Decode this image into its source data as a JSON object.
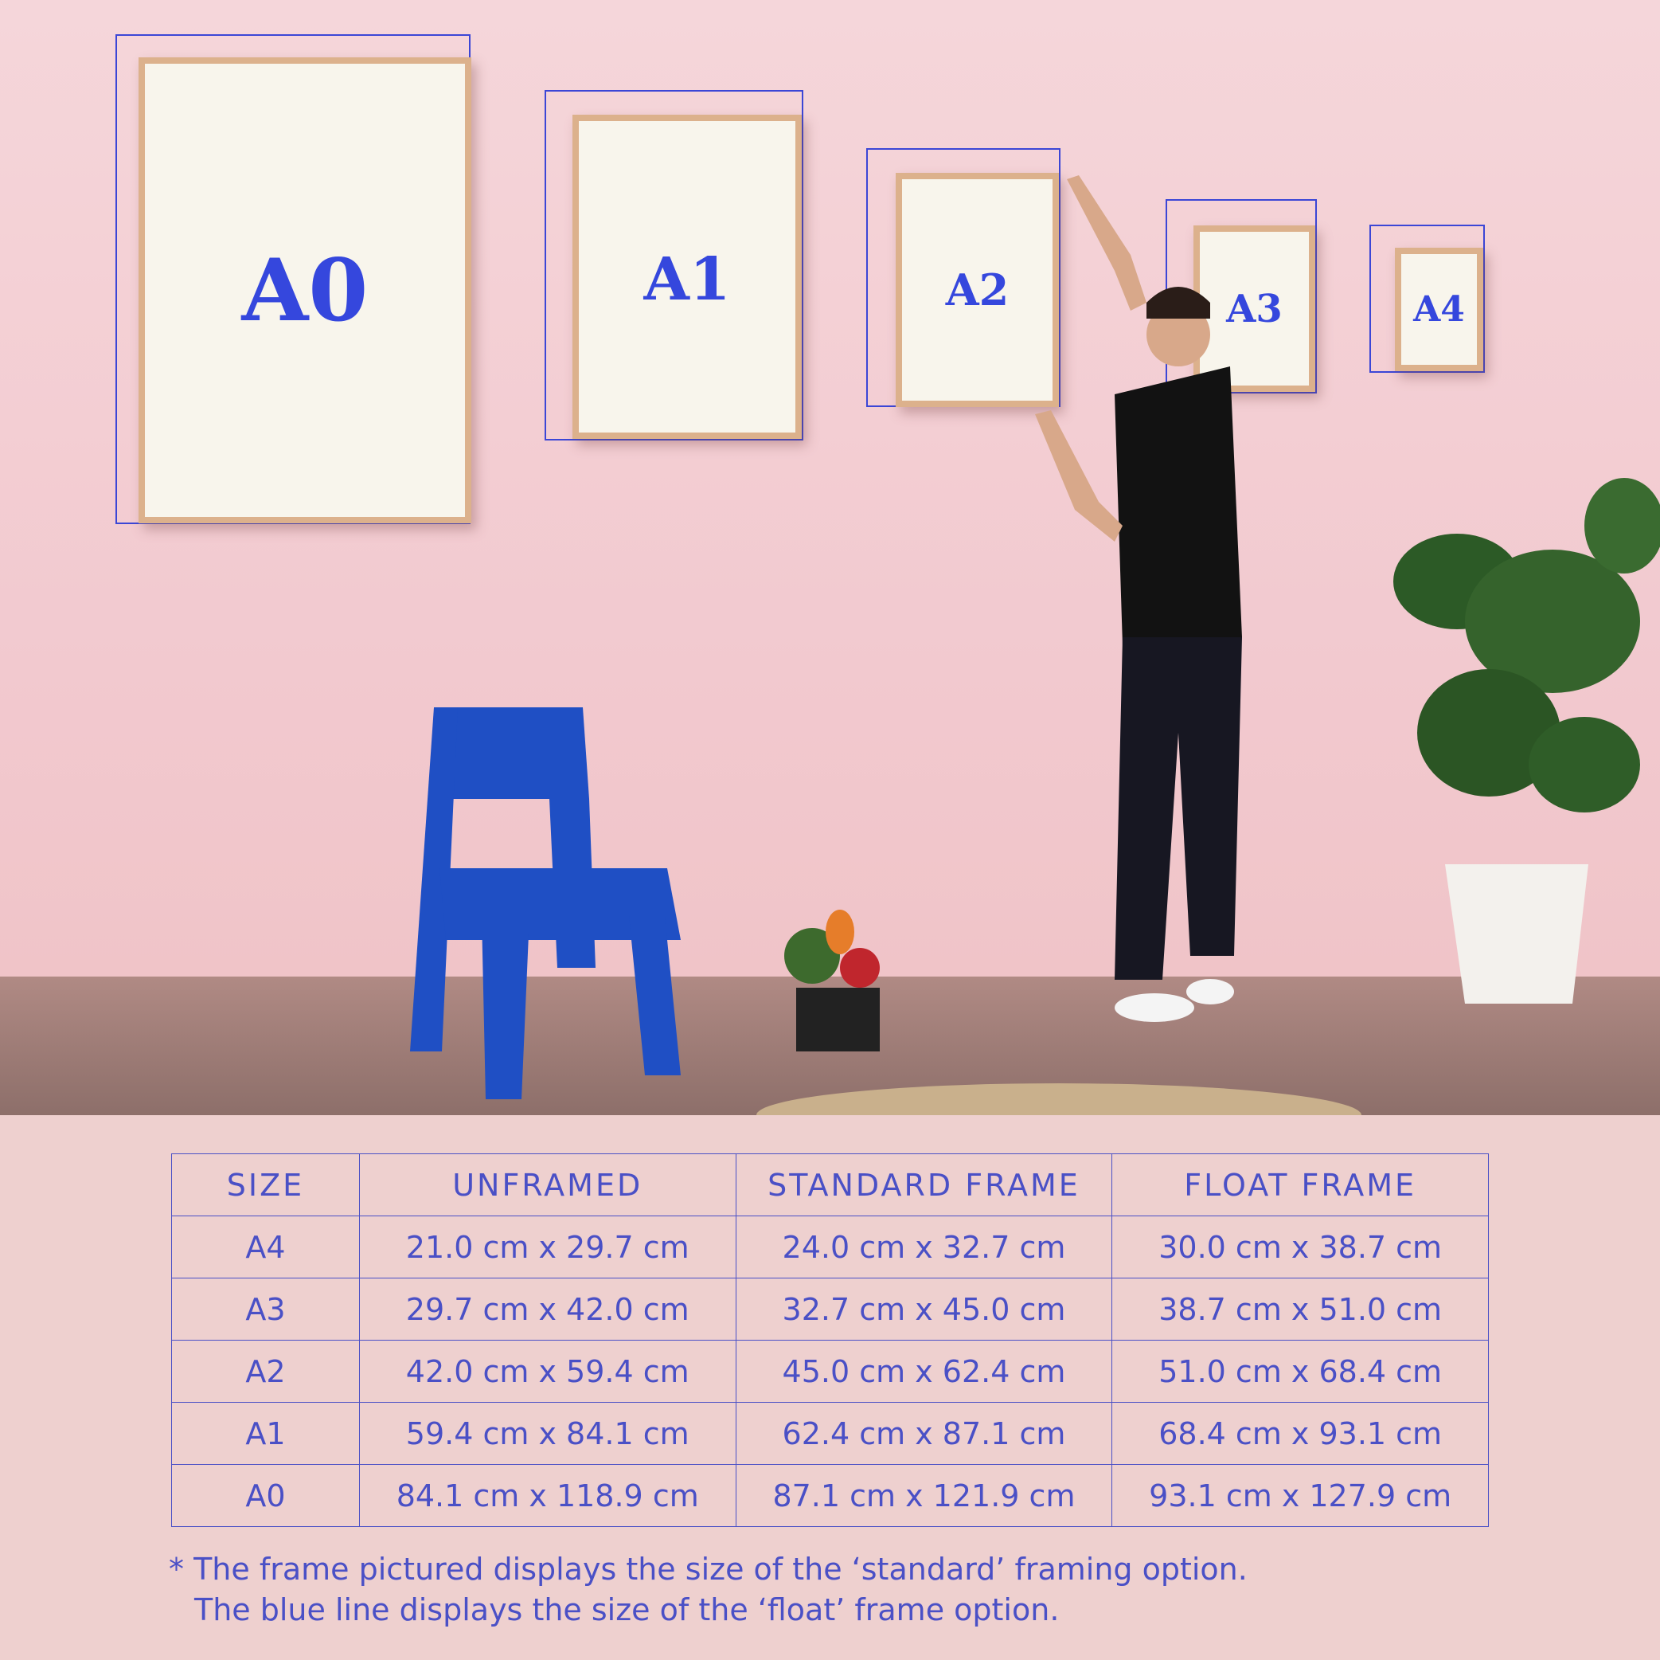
{
  "frames": [
    {
      "label": "A0"
    },
    {
      "label": "A1"
    },
    {
      "label": "A2"
    },
    {
      "label": "A3"
    },
    {
      "label": "A4"
    }
  ],
  "table": {
    "headers": [
      "SIZE",
      "UNFRAMED",
      "STANDARD FRAME",
      "FLOAT FRAME"
    ],
    "rows": [
      [
        "A4",
        "21.0 cm x 29.7 cm",
        "24.0 cm x 32.7 cm",
        "30.0 cm x 38.7 cm"
      ],
      [
        "A3",
        "29.7 cm x 42.0 cm",
        "32.7 cm x 45.0 cm",
        "38.7 cm x 51.0 cm"
      ],
      [
        "A2",
        "42.0 cm x 59.4 cm",
        "45.0 cm x 62.4 cm",
        "51.0 cm x 68.4 cm"
      ],
      [
        "A1",
        "59.4 cm x 84.1 cm",
        "62.4 cm x 87.1 cm",
        "68.4 cm x 93.1 cm"
      ],
      [
        "A0",
        "84.1 cm x 118.9 cm",
        "87.1 cm x 121.9 cm",
        "93.1 cm x 127.9 cm"
      ]
    ]
  },
  "note": {
    "line1": "* The frame pictured displays the size of the ‘standard’ framing option.",
    "line2": "The blue line displays the size of the ‘float’ frame option."
  },
  "colors": {
    "accent": "#3b46d6",
    "wall": "#f2c9cf",
    "frame_wood": "#dcb18c"
  }
}
